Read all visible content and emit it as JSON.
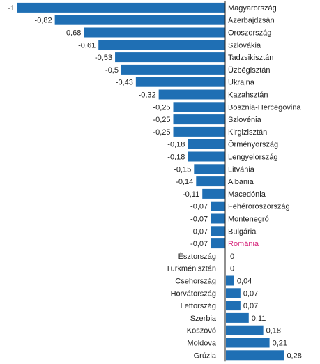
{
  "chart_data": {
    "type": "bar",
    "orientation": "horizontal",
    "title": "",
    "xlabel": "",
    "ylabel": "",
    "xlim": [
      -1,
      0.28
    ],
    "grid": false,
    "legend": "none",
    "bar_color": "#1f6fb4",
    "highlight_color": "#d6247a",
    "axis_color": "#222222",
    "categories": [
      "Magyarország",
      "Azerbajdzsán",
      "Oroszország",
      "Szlovákia",
      "Tadzsikisztán",
      "Üzbégisztán",
      "Ukrajna",
      "Kazahsztán",
      "Bosznia-Hercegovina",
      "Szlovénia",
      "Kirgizisztán",
      "Örményország",
      "Lengyelország",
      "Litvánia",
      "Albánia",
      "Macedónia",
      "Fehéroroszország",
      "Montenegró",
      "Bulgária",
      "Románia",
      "Észtország",
      "Türkménisztán",
      "Csehország",
      "Horvátország",
      "Lettország",
      "Szerbia",
      "Koszovó",
      "Moldova",
      "Grúzia"
    ],
    "values": [
      -1,
      -0.82,
      -0.68,
      -0.61,
      -0.53,
      -0.5,
      -0.43,
      -0.32,
      -0.25,
      -0.25,
      -0.25,
      -0.18,
      -0.18,
      -0.15,
      -0.14,
      -0.11,
      -0.07,
      -0.07,
      -0.07,
      -0.07,
      0,
      0,
      0.04,
      0.07,
      0.07,
      0.11,
      0.18,
      0.21,
      0.28
    ],
    "value_labels": [
      "-1",
      "-0,82",
      "-0,68",
      "-0,61",
      "-0,53",
      "-0,5",
      "-0,43",
      "-0,32",
      "-0,25",
      "-0,25",
      "-0,25",
      "-0,18",
      "-0,18",
      "-0,15",
      "-0,14",
      "-0,11",
      "-0,07",
      "-0,07",
      "-0,07",
      "-0,07",
      "0",
      "0",
      "0,04",
      "0,07",
      "0,07",
      "0,11",
      "0,18",
      "0,21",
      "0,28"
    ],
    "highlight_category": "Románia"
  }
}
